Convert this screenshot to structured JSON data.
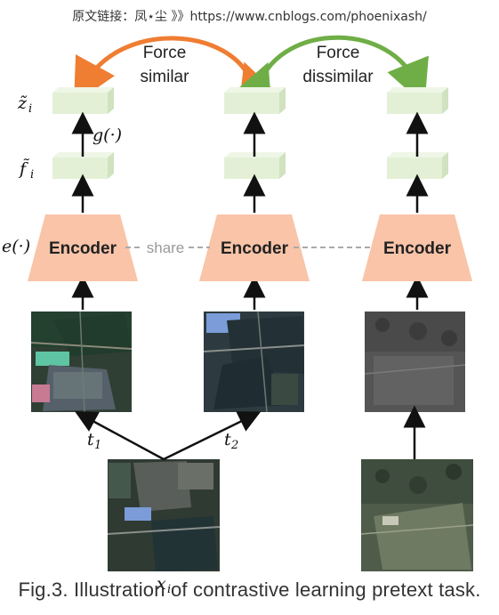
{
  "watermark": "原文链接：凤⋆尘 》》https://www.cnblogs.com/phoenixash/",
  "labels": {
    "force_similar_line1": "Force",
    "force_similar_line2": "similar",
    "force_dissimilar_line1": "Force",
    "force_dissimilar_line2": "dissimilar",
    "share": "share",
    "z_base": "z̃",
    "z_sub": "i",
    "f_base": "f̃",
    "f_sub": "i",
    "g_func": "g(·)",
    "e_func": "e(·)",
    "t1_base": "t",
    "t1_sub": "1",
    "t2_base": "t",
    "t2_sub": "2",
    "x_base": "x",
    "x_sub": "i"
  },
  "encoders": [
    {
      "label": "Encoder"
    },
    {
      "label": "Encoder"
    },
    {
      "label": "Encoder"
    }
  ],
  "colors": {
    "encoder_fill": "#f9c4a8",
    "feature_fill": "#e3f0d6",
    "feature_top": "#eef6e6",
    "feature_side": "#d0e2bf",
    "arrow_similar": "#ef7d32",
    "arrow_dissimilar": "#6fae46",
    "share_line": "#aaaaaa"
  },
  "caption": "Fig.3. Illustration of contrastive learning pretext task."
}
